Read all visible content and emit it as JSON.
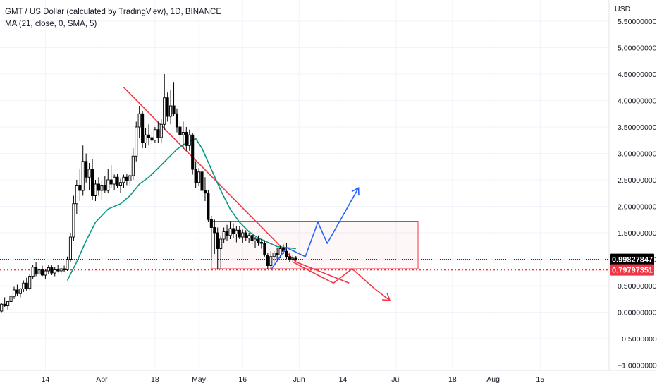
{
  "legend": {
    "title": "GMT / US Dollar (calculated by TradingView), 1D, BINANCE",
    "indicator": "MA (21, close, 0, SMA, 5)"
  },
  "currency": "USD",
  "colors": {
    "candle_up": "#ffffff",
    "candle_down": "#000000",
    "wick": "#000000",
    "ma": "#089981",
    "trendline": "#f23645",
    "box": "#f23645",
    "bull_path": "#2962ff",
    "bear_path": "#f23645",
    "price_badge": "#000000",
    "support_badge": "#f23645",
    "grid": "#f0f3fa",
    "axis_text": "#131722"
  },
  "chart_data": {
    "type": "candlestick",
    "title": "GMT / US Dollar (calculated by TradingView), 1D, BINANCE",
    "x_tick_labels": [
      "14",
      "Apr",
      "18",
      "May",
      "16",
      "Jun",
      "14",
      "Jul",
      "18",
      "Aug",
      "15"
    ],
    "x_tick_days": [
      14,
      32,
      49,
      63,
      77,
      95,
      109,
      126,
      144,
      157,
      172
    ],
    "y_tick_labels": [
      "5.50000000",
      "5.00000000",
      "4.50000000",
      "4.00000000",
      "3.50000000",
      "3.00000000",
      "2.50000000",
      "2.00000000",
      "1.50000000",
      "1.00000000",
      "0.50000000",
      "0.00000000",
      "−0.50000000",
      "−1.00000000"
    ],
    "y_tick_values": [
      5.5,
      5.0,
      4.5,
      4.0,
      3.5,
      3.0,
      2.5,
      2.0,
      1.5,
      1.0,
      0.5,
      0.0,
      -0.5,
      -1.0
    ],
    "ylim": [
      -1.1,
      5.9
    ],
    "xlim": [
      -0.5,
      194
    ],
    "candles": [
      [
        0,
        0.02,
        0.18,
        0.0,
        0.15
      ],
      [
        1,
        0.15,
        0.28,
        0.1,
        0.12
      ],
      [
        2,
        0.12,
        0.22,
        0.05,
        0.2
      ],
      [
        3,
        0.2,
        0.33,
        0.15,
        0.3
      ],
      [
        4,
        0.3,
        0.48,
        0.25,
        0.42
      ],
      [
        5,
        0.42,
        0.52,
        0.3,
        0.35
      ],
      [
        6,
        0.35,
        0.46,
        0.28,
        0.44
      ],
      [
        7,
        0.44,
        0.6,
        0.38,
        0.55
      ],
      [
        8,
        0.55,
        0.65,
        0.4,
        0.45
      ],
      [
        9,
        0.45,
        0.72,
        0.42,
        0.68
      ],
      [
        10,
        0.68,
        0.9,
        0.62,
        0.85
      ],
      [
        11,
        0.85,
        0.95,
        0.68,
        0.72
      ],
      [
        12,
        0.72,
        0.86,
        0.66,
        0.8
      ],
      [
        13,
        0.8,
        0.88,
        0.68,
        0.7
      ],
      [
        14,
        0.7,
        0.82,
        0.62,
        0.78
      ],
      [
        15,
        0.78,
        0.9,
        0.72,
        0.84
      ],
      [
        16,
        0.84,
        0.9,
        0.7,
        0.74
      ],
      [
        17,
        0.74,
        0.85,
        0.68,
        0.8
      ],
      [
        18,
        0.8,
        0.9,
        0.75,
        0.78
      ],
      [
        19,
        0.78,
        0.84,
        0.72,
        0.82
      ],
      [
        20,
        0.82,
        0.88,
        0.76,
        0.8
      ],
      [
        21,
        0.8,
        1.05,
        0.78,
        1.0
      ],
      [
        22,
        1.0,
        1.5,
        0.95,
        1.42
      ],
      [
        23,
        1.42,
        2.2,
        1.35,
        2.05
      ],
      [
        24,
        2.05,
        2.5,
        1.85,
        2.4
      ],
      [
        25,
        2.4,
        2.7,
        2.1,
        2.3
      ],
      [
        26,
        2.3,
        3.15,
        2.2,
        2.85
      ],
      [
        27,
        2.85,
        3.0,
        2.45,
        2.55
      ],
      [
        28,
        2.55,
        2.82,
        2.3,
        2.7
      ],
      [
        29,
        2.7,
        2.9,
        2.12,
        2.2
      ],
      [
        30,
        2.2,
        2.5,
        2.1,
        2.42
      ],
      [
        31,
        2.42,
        2.55,
        2.2,
        2.3
      ],
      [
        32,
        2.3,
        2.48,
        2.12,
        2.4
      ],
      [
        33,
        2.4,
        2.58,
        2.25,
        2.3
      ],
      [
        34,
        2.3,
        2.7,
        2.25,
        2.5
      ],
      [
        35,
        2.5,
        2.78,
        2.35,
        2.42
      ],
      [
        36,
        2.42,
        2.6,
        2.3,
        2.55
      ],
      [
        37,
        2.55,
        2.62,
        2.35,
        2.4
      ],
      [
        38,
        2.4,
        2.52,
        2.25,
        2.45
      ],
      [
        39,
        2.45,
        2.6,
        2.35,
        2.55
      ],
      [
        40,
        2.55,
        2.62,
        2.4,
        2.48
      ],
      [
        41,
        2.48,
        2.6,
        2.4,
        2.58
      ],
      [
        42,
        2.58,
        3.1,
        2.5,
        2.95
      ],
      [
        43,
        2.95,
        3.6,
        2.85,
        3.5
      ],
      [
        44,
        3.5,
        3.9,
        3.3,
        3.75
      ],
      [
        45,
        3.75,
        3.8,
        3.1,
        3.2
      ],
      [
        46,
        3.2,
        3.48,
        3.1,
        3.35
      ],
      [
        47,
        3.35,
        3.55,
        3.15,
        3.3
      ],
      [
        48,
        3.3,
        3.45,
        3.18,
        3.25
      ],
      [
        49,
        3.25,
        3.5,
        3.2,
        3.45
      ],
      [
        50,
        3.45,
        3.6,
        3.2,
        3.3
      ],
      [
        51,
        3.3,
        3.65,
        3.2,
        3.55
      ],
      [
        52,
        3.55,
        4.5,
        3.45,
        4.05
      ],
      [
        53,
        4.05,
        4.15,
        3.6,
        3.7
      ],
      [
        54,
        3.7,
        4.2,
        3.55,
        3.9
      ],
      [
        55,
        3.9,
        4.35,
        3.7,
        3.75
      ],
      [
        56,
        3.75,
        3.85,
        3.4,
        3.5
      ],
      [
        57,
        3.5,
        3.6,
        3.2,
        3.35
      ],
      [
        58,
        3.35,
        3.6,
        3.1,
        3.4
      ],
      [
        59,
        3.4,
        3.5,
        3.05,
        3.15
      ],
      [
        60,
        3.15,
        3.45,
        3.05,
        3.35
      ],
      [
        61,
        3.35,
        3.38,
        2.6,
        2.7
      ],
      [
        62,
        2.7,
        2.85,
        2.35,
        2.45
      ],
      [
        63,
        2.45,
        2.72,
        2.38,
        2.65
      ],
      [
        64,
        2.65,
        2.75,
        2.2,
        2.3
      ],
      [
        65,
        2.3,
        2.55,
        2.1,
        2.25
      ],
      [
        66,
        2.25,
        2.3,
        1.7,
        1.75
      ],
      [
        67,
        1.75,
        1.82,
        1.02,
        1.6
      ],
      [
        68,
        1.6,
        1.75,
        1.1,
        1.5
      ],
      [
        69,
        1.5,
        1.6,
        0.8,
        1.2
      ],
      [
        70,
        1.2,
        1.45,
        0.8,
        1.38
      ],
      [
        71,
        1.38,
        1.6,
        1.3,
        1.52
      ],
      [
        72,
        1.52,
        1.65,
        1.35,
        1.45
      ],
      [
        73,
        1.45,
        1.72,
        1.38,
        1.58
      ],
      [
        74,
        1.58,
        1.68,
        1.4,
        1.48
      ],
      [
        75,
        1.48,
        1.62,
        1.32,
        1.55
      ],
      [
        76,
        1.55,
        1.62,
        1.38,
        1.42
      ],
      [
        77,
        1.42,
        1.56,
        1.3,
        1.5
      ],
      [
        78,
        1.5,
        1.55,
        1.35,
        1.4
      ],
      [
        79,
        1.4,
        1.5,
        1.3,
        1.45
      ],
      [
        80,
        1.45,
        1.52,
        1.28,
        1.35
      ],
      [
        81,
        1.35,
        1.42,
        1.22,
        1.38
      ],
      [
        82,
        1.38,
        1.45,
        1.25,
        1.32
      ],
      [
        83,
        1.32,
        1.38,
        1.2,
        1.3
      ],
      [
        84,
        1.3,
        1.36,
        1.05,
        1.08
      ],
      [
        85,
        1.08,
        1.12,
        0.82,
        0.88
      ],
      [
        86,
        0.88,
        1.15,
        0.82,
        1.05
      ],
      [
        87,
        1.05,
        1.15,
        0.92,
        1.12
      ],
      [
        88,
        1.12,
        1.22,
        1.0,
        1.08
      ],
      [
        89,
        1.08,
        1.25,
        1.02,
        1.2
      ],
      [
        90,
        1.2,
        1.28,
        1.1,
        1.15
      ],
      [
        91,
        1.15,
        1.3,
        1.0,
        1.05
      ],
      [
        92,
        1.05,
        1.12,
        0.95,
        1.0
      ],
      [
        93,
        1.0,
        1.08,
        0.95,
        1.02
      ],
      [
        94,
        1.02,
        1.06,
        0.97,
        0.998
      ]
    ],
    "ma_series": {
      "name": "MA (21, close, 0, SMA, 5)",
      "points": [
        [
          21,
          0.6
        ],
        [
          24,
          0.95
        ],
        [
          27,
          1.35
        ],
        [
          30,
          1.7
        ],
        [
          34,
          1.95
        ],
        [
          38,
          2.05
        ],
        [
          41,
          2.2
        ],
        [
          44,
          2.42
        ],
        [
          47,
          2.55
        ],
        [
          50,
          2.72
        ],
        [
          53,
          2.9
        ],
        [
          56,
          3.08
        ],
        [
          59,
          3.2
        ],
        [
          62,
          3.28
        ],
        [
          64,
          3.1
        ],
        [
          67,
          2.7
        ],
        [
          70,
          2.3
        ],
        [
          73,
          1.95
        ],
        [
          76,
          1.7
        ],
        [
          79,
          1.52
        ],
        [
          82,
          1.4
        ],
        [
          85,
          1.32
        ],
        [
          88,
          1.24
        ],
        [
          91,
          1.22
        ],
        [
          94,
          1.2
        ]
      ]
    },
    "trendline": [
      [
        39,
        4.25
      ],
      [
        94,
        0.95
      ],
      [
        111,
        0.55
      ]
    ],
    "range_box": {
      "x_start": 67,
      "x_end": 133,
      "top": 1.72,
      "bottom": 0.82
    },
    "bull_path": [
      [
        86,
        0.8
      ],
      [
        91,
        1.22
      ],
      [
        97,
        1.05
      ],
      [
        101,
        1.7
      ],
      [
        104,
        1.3
      ],
      [
        114,
        2.35
      ]
    ],
    "bear_path": [
      [
        93,
        0.95
      ],
      [
        101,
        0.7
      ],
      [
        106,
        0.55
      ],
      [
        112,
        0.82
      ],
      [
        119,
        0.45
      ],
      [
        124,
        0.22
      ]
    ],
    "current_price": {
      "value": 0.99827847,
      "label": "0.99827847"
    },
    "support_level": {
      "value": 0.79797351,
      "label": "0.79797351"
    }
  }
}
